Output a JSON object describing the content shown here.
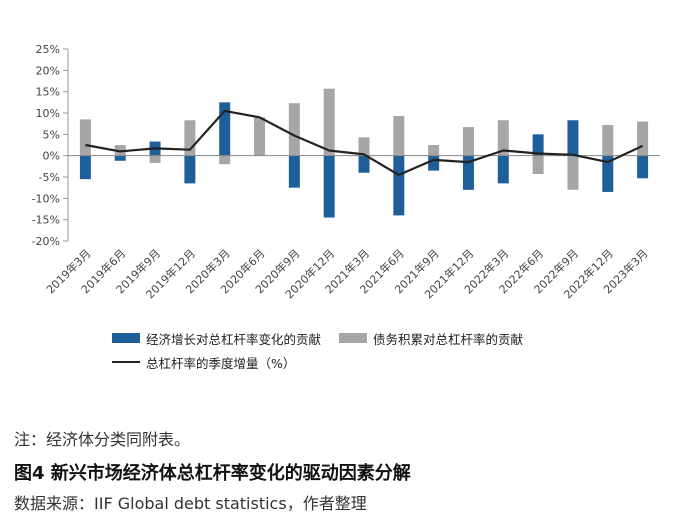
{
  "chart_data": {
    "type": "bar",
    "categories": [
      "2019年3月",
      "2019年6月",
      "2019年9月",
      "2019年12月",
      "2020年3月",
      "2020年6月",
      "2020年9月",
      "2020年12月",
      "2021年3月",
      "2021年6月",
      "2021年9月",
      "2021年12月",
      "2022年3月",
      "2022年6月",
      "2022年9月",
      "2022年12月",
      "2023年3月"
    ],
    "ylim": [
      -20,
      25
    ],
    "yticks": [
      -20,
      -15,
      -10,
      -5,
      0,
      5,
      10,
      15,
      20,
      25
    ],
    "ytick_labels": [
      "-20%",
      "-15%",
      "-10%",
      "-5%",
      "0%",
      "5%",
      "10%",
      "15%",
      "20%",
      "25%"
    ],
    "series": [
      {
        "name": "经济增长对总杠杆率变化的贡献",
        "kind": "bar",
        "color": "#1f5f99",
        "values": [
          -5.5,
          -1.2,
          3.3,
          -6.5,
          12.5,
          0.8,
          -7.5,
          -14.5,
          -4.0,
          -14.0,
          -3.5,
          -8.0,
          -6.5,
          5.0,
          8.3,
          -8.5,
          -5.3
        ]
      },
      {
        "name": "债务积累对总杠杆率的贡献",
        "kind": "bar",
        "color": "#a6a6a6",
        "values": [
          8.5,
          2.5,
          -1.7,
          8.3,
          -2.0,
          9.0,
          12.3,
          15.7,
          4.3,
          9.3,
          2.5,
          6.7,
          8.3,
          -4.3,
          -8.0,
          7.2,
          8.0
        ]
      },
      {
        "name": "总杠杆率的季度增量（%）",
        "kind": "line",
        "color": "#222222",
        "values": [
          2.5,
          1.0,
          1.7,
          1.4,
          10.5,
          9.0,
          4.7,
          1.2,
          0.3,
          -4.5,
          -1.0,
          -1.5,
          1.2,
          0.5,
          0.2,
          -1.5,
          2.3
        ]
      }
    ],
    "legend_position": "bottom",
    "grid": false
  },
  "note": "注：经济体分类同附表。",
  "figure_title": "图4  新兴市场经济体总杠杆率变化的驱动因素分解",
  "source": "数据来源：IIF Global debt statistics，作者整理"
}
